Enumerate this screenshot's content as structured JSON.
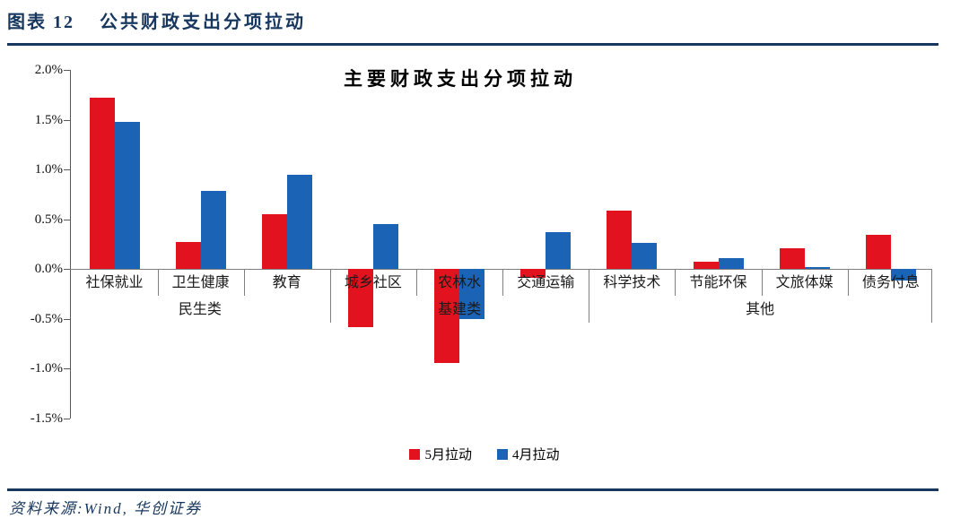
{
  "header": {
    "figure_label": "图表 12",
    "figure_title": "公共财政支出分项拉动"
  },
  "footer": {
    "source": "资料来源:Wind, 华创证券"
  },
  "colors": {
    "accent_navy": "#17375e",
    "series_may_red": "#e2131f",
    "series_apr_blue": "#1b63b5",
    "axis_gray": "#595959",
    "separator_gray": "#7f7f7f"
  },
  "chart_data": {
    "type": "bar",
    "title": "主要财政支出分项拉动",
    "xlabel": "",
    "ylabel": "",
    "grid": false,
    "legend_position": "bottom",
    "ylim": [
      -1.5,
      2.0
    ],
    "ytick_step": 0.5,
    "ytick_labels": [
      "2.0%",
      "1.5%",
      "1.0%",
      "0.5%",
      "0.0%",
      "-0.5%",
      "-1.0%",
      "-1.5%"
    ],
    "categories": [
      "社保就业",
      "卫生健康",
      "教育",
      "城乡社区",
      "农林水",
      "交通运输",
      "科学技术",
      "节能环保",
      "文旅体媒",
      "债务付息"
    ],
    "groups": [
      {
        "label": "民生类",
        "start": 0,
        "end": 2
      },
      {
        "label": "基建类",
        "start": 3,
        "end": 5
      },
      {
        "label": "其他",
        "start": 6,
        "end": 9
      }
    ],
    "series": [
      {
        "name": "5月拉动",
        "color": "#e2131f",
        "values": [
          1.72,
          0.27,
          0.55,
          -0.59,
          -0.95,
          -0.09,
          0.59,
          0.07,
          0.21,
          0.34
        ]
      },
      {
        "name": "4月拉动",
        "color": "#1b63b5",
        "values": [
          1.48,
          0.78,
          0.95,
          0.45,
          -0.5,
          0.37,
          0.26,
          0.11,
          0.02,
          -0.12
        ]
      }
    ]
  }
}
